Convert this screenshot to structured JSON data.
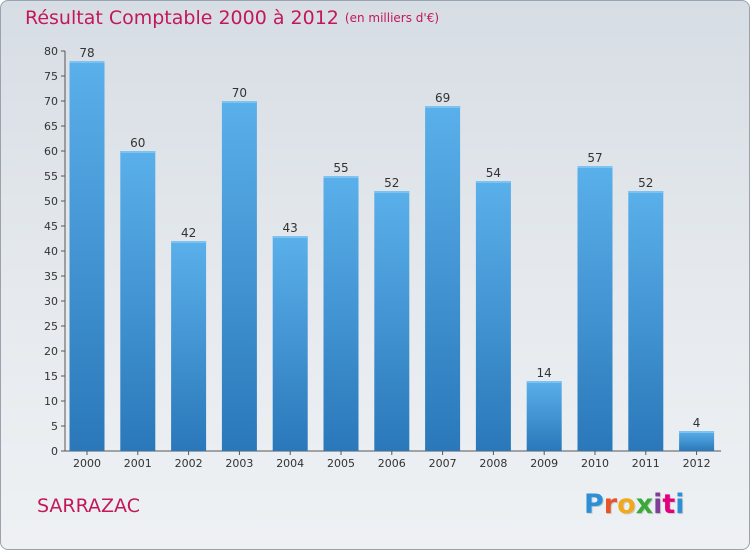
{
  "header": {
    "title": "Résultat Comptable 2000 à 2012",
    "subtitle": "(en milliers d'€)"
  },
  "commune": "SARRAZAC",
  "logo": {
    "letters": [
      "P",
      "r",
      "o",
      "x",
      "i",
      "t",
      "i"
    ],
    "colors": [
      "#2d8fd6",
      "#e8542a",
      "#f0a81c",
      "#3aa935",
      "#7f3f98",
      "#e4007c",
      "#2d8fd6"
    ]
  },
  "colors": {
    "bar": "#3d93d6",
    "bar_light": "#5ab0ea",
    "bar_dark": "#2a78ba",
    "axis": "#555555",
    "grid_tick": "#555555"
  },
  "chart_data": {
    "type": "bar",
    "title": "Résultat Comptable 2000 à 2012",
    "subtitle": "(en milliers d'€)",
    "categories": [
      "2000",
      "2001",
      "2002",
      "2003",
      "2004",
      "2005",
      "2006",
      "2007",
      "2008",
      "2009",
      "2010",
      "2011",
      "2012"
    ],
    "values": [
      78,
      60,
      42,
      70,
      43,
      55,
      52,
      69,
      54,
      14,
      57,
      52,
      4
    ],
    "xlabel": "",
    "ylabel": "",
    "ylim": [
      0,
      80
    ],
    "yticks": [
      0,
      5,
      10,
      15,
      20,
      25,
      30,
      35,
      40,
      45,
      50,
      55,
      60,
      65,
      70,
      75,
      80
    ],
    "grid": false,
    "legend": "none"
  }
}
